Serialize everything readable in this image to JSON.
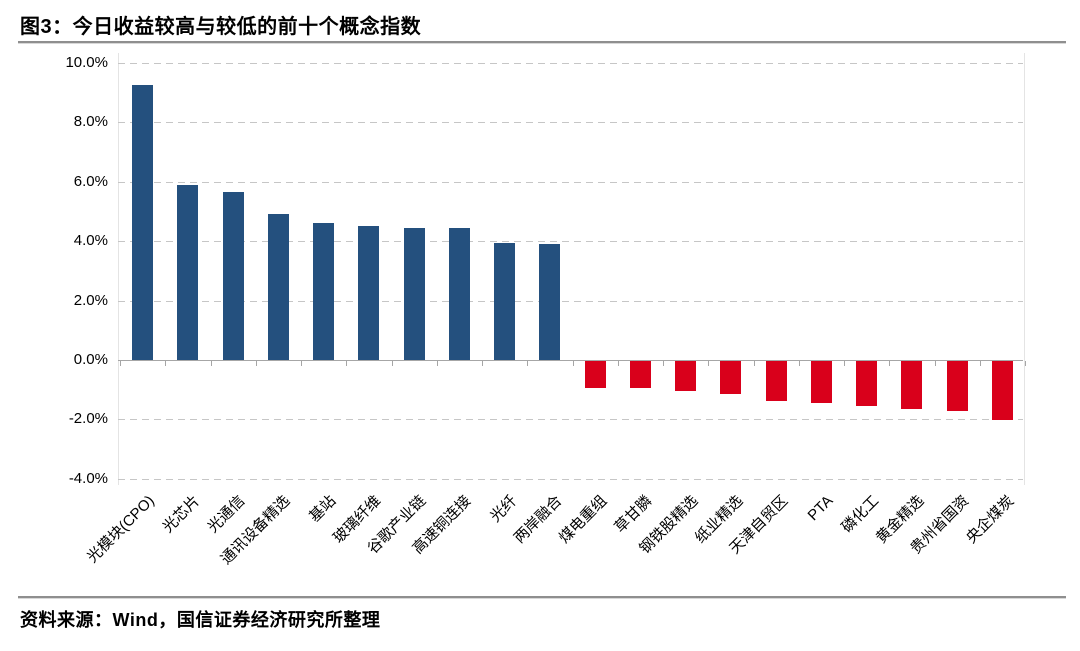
{
  "figure": {
    "title": "图3：今日收益较高与较低的前十个概念指数",
    "source_note": "资料来源：Wind，国信证券经济研究所整理"
  },
  "colors": {
    "positive_bar": "#24507E",
    "negative_bar": "#D9001B",
    "gridline": "#c6c6c6",
    "axis_line": "#a6a6a6",
    "plot_border": "#e4e4e4",
    "divider": "#8f8f8f",
    "text": "#000000"
  },
  "chart_data": {
    "type": "bar",
    "title": "图3：今日收益较高与较低的前十个概念指数",
    "categories": [
      "光模块(CPO)",
      "光芯片",
      "光通信",
      "通讯设备精选",
      "基站",
      "玻璃纤维",
      "谷歌产业链",
      "高速铜连接",
      "光纤",
      "两岸融合",
      "煤电重组",
      "草甘膦",
      "钢铁股精选",
      "纸业精选",
      "天津自贸区",
      "PTA",
      "磷化工",
      "黄金精选",
      "贵州省国资",
      "央企煤炭"
    ],
    "values": [
      9.25,
      5.9,
      5.65,
      4.9,
      4.6,
      4.5,
      4.45,
      4.45,
      3.95,
      3.9,
      -0.9,
      -0.9,
      -1.0,
      -1.1,
      -1.35,
      -1.4,
      -1.5,
      -1.6,
      -1.7,
      -2.0
    ],
    "unit": "%",
    "xlabel": "",
    "ylabel": "",
    "ylim": [
      -4,
      10
    ],
    "yticks": [
      10,
      8,
      6,
      4,
      2,
      0,
      -2,
      -4
    ],
    "ytick_labels": [
      "10.0%",
      "8.0%",
      "6.0%",
      "4.0%",
      "2.0%",
      "0.0%",
      "-2.0%",
      "-4.0%"
    ],
    "xtick_rotation_deg": 45,
    "grid": "horizontal-dashed",
    "legend": "none",
    "bar_color_rule": "positive = dark blue, negative = red"
  }
}
